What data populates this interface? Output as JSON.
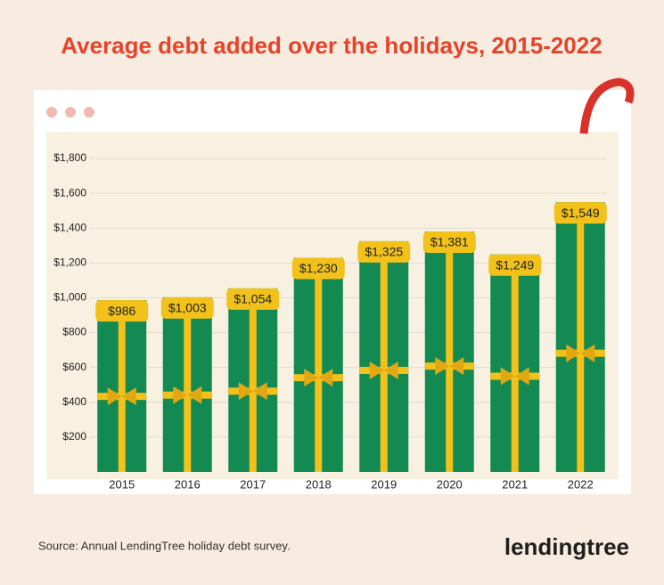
{
  "chart_data": {
    "type": "bar",
    "title": "Average debt added over the holidays, 2015-2022",
    "categories": [
      "2015",
      "2016",
      "2017",
      "2018",
      "2019",
      "2020",
      "2021",
      "2022"
    ],
    "values": [
      986,
      1003,
      1054,
      1230,
      1325,
      1381,
      1249,
      1549
    ],
    "value_labels": [
      "$986",
      "$1,003",
      "$1,054",
      "$1,230",
      "$1,325",
      "$1,381",
      "$1,249",
      "$1,549"
    ],
    "color": "#138a52",
    "ylim": [
      0,
      1800
    ],
    "yticks": [
      {
        "value": 200,
        "label": "$200"
      },
      {
        "value": 400,
        "label": "$400"
      },
      {
        "value": 600,
        "label": "$600"
      },
      {
        "value": 800,
        "label": "$800"
      },
      {
        "value": 1000,
        "label": "$1,000"
      },
      {
        "value": 1200,
        "label": "$1,200"
      },
      {
        "value": 1400,
        "label": "$1,400"
      },
      {
        "value": 1600,
        "label": "$1,600"
      },
      {
        "value": 1800,
        "label": "$1,800"
      }
    ],
    "grid": true,
    "source": "Source: Annual LendingTree holiday debt survey.",
    "logo": "lendingtree"
  }
}
